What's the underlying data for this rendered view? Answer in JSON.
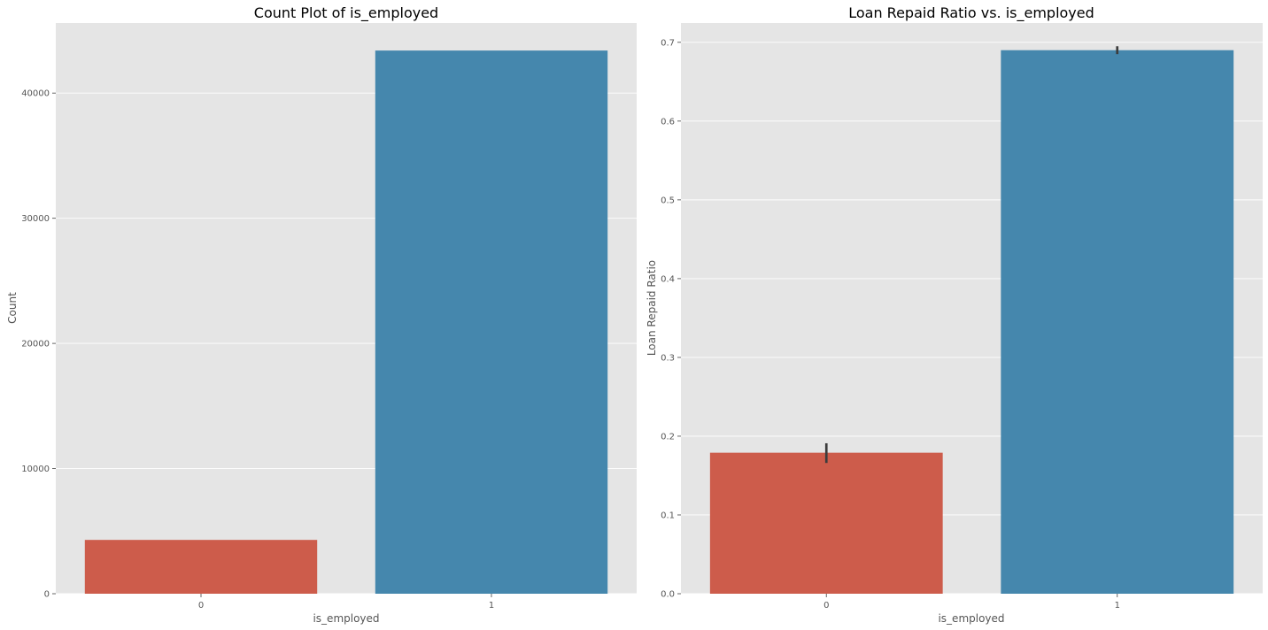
{
  "chart_data": [
    {
      "type": "bar",
      "title": "Count Plot of is_employed",
      "xlabel": "is_employed",
      "ylabel": "Count",
      "categories": [
        "0",
        "1"
      ],
      "values": [
        4300,
        43400
      ],
      "colors": [
        "#cd5c4b",
        "#4587ad"
      ],
      "ylim": [
        0,
        45600
      ],
      "yticks": [
        0,
        10000,
        20000,
        30000,
        40000
      ],
      "ytick_labels": [
        "0",
        "10000",
        "20000",
        "30000",
        "40000"
      ],
      "grid": true
    },
    {
      "type": "bar",
      "title": "Loan Repaid Ratio vs. is_employed",
      "xlabel": "is_employed",
      "ylabel": "Loan Repaid Ratio",
      "categories": [
        "0",
        "1"
      ],
      "values": [
        0.179,
        0.69
      ],
      "error_bars": [
        [
          0.166,
          0.191
        ],
        [
          0.685,
          0.695
        ]
      ],
      "colors": [
        "#cd5c4b",
        "#4587ad"
      ],
      "ylim": [
        0,
        0.7245
      ],
      "yticks": [
        0.0,
        0.1,
        0.2,
        0.3,
        0.4,
        0.5,
        0.6,
        0.7
      ],
      "ytick_labels": [
        "0.0",
        "0.1",
        "0.2",
        "0.3",
        "0.4",
        "0.5",
        "0.6",
        "0.7"
      ],
      "grid": true
    }
  ]
}
